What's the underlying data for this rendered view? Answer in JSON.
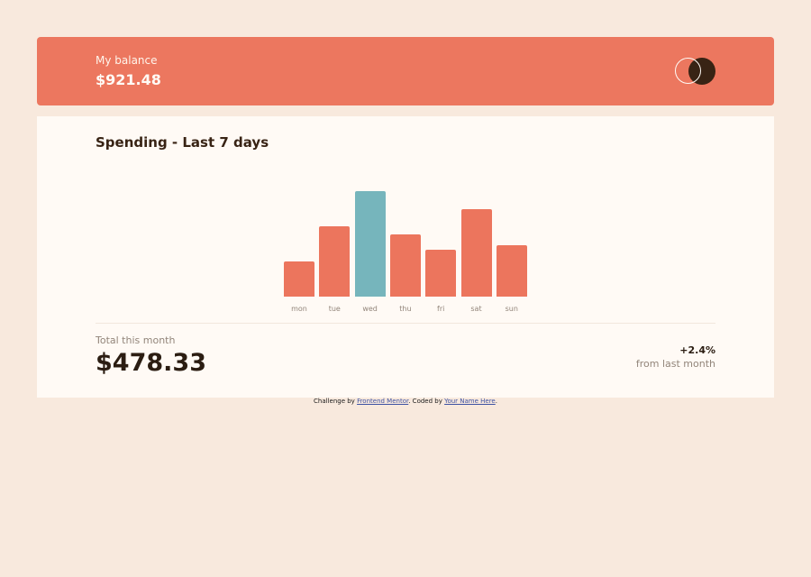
{
  "balance": {
    "label": "My balance",
    "amount": "$921.48"
  },
  "spending": {
    "title": "Spending - Last 7 days",
    "total_label": "Total this month",
    "total_amount": "$478.33",
    "change_value": "+2.4%",
    "change_label": "from last month"
  },
  "chart_data": {
    "type": "bar",
    "title": "Spending - Last 7 days",
    "categories": [
      "mon",
      "tue",
      "wed",
      "thu",
      "fri",
      "sat",
      "sun"
    ],
    "values": [
      17.45,
      34.91,
      52.36,
      31.07,
      23.39,
      43.28,
      25.48
    ],
    "highlight_index": 2,
    "colors": {
      "bar": "#ec755d",
      "highlight": "#76b5bc"
    }
  },
  "attribution": {
    "prefix": "Challenge by",
    "link1": "Frontend Mentor",
    "middle": ". Coded by",
    "link2": "Your Name Here",
    "suffix": "."
  }
}
